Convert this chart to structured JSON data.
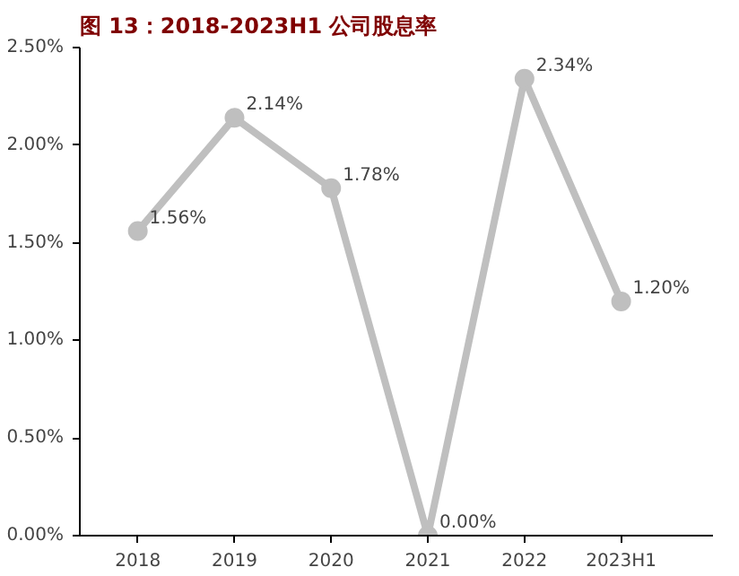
{
  "chart_data": {
    "type": "line",
    "title": "图 13：2018-2023H1 公司股息率",
    "categories": [
      "2018",
      "2019",
      "2020",
      "2021",
      "2022",
      "2023H1"
    ],
    "values": [
      1.56,
      2.14,
      1.78,
      0.0,
      2.34,
      1.2
    ],
    "value_labels": [
      "1.56%",
      "2.14%",
      "1.78%",
      "0.00%",
      "2.34%",
      "1.20%"
    ],
    "color": "#bfbfbf",
    "marker": "circle",
    "line_style": "solid",
    "grid": false,
    "ylim": [
      0,
      2.5
    ],
    "yticks": [
      {
        "value": 0,
        "label": "0.00%"
      },
      {
        "value": 0.5,
        "label": "0.50%"
      },
      {
        "value": 1.0,
        "label": "1.00%"
      },
      {
        "value": 1.5,
        "label": "1.50%"
      },
      {
        "value": 2.0,
        "label": "2.00%"
      },
      {
        "value": 2.5,
        "label": "2.50%"
      }
    ]
  }
}
